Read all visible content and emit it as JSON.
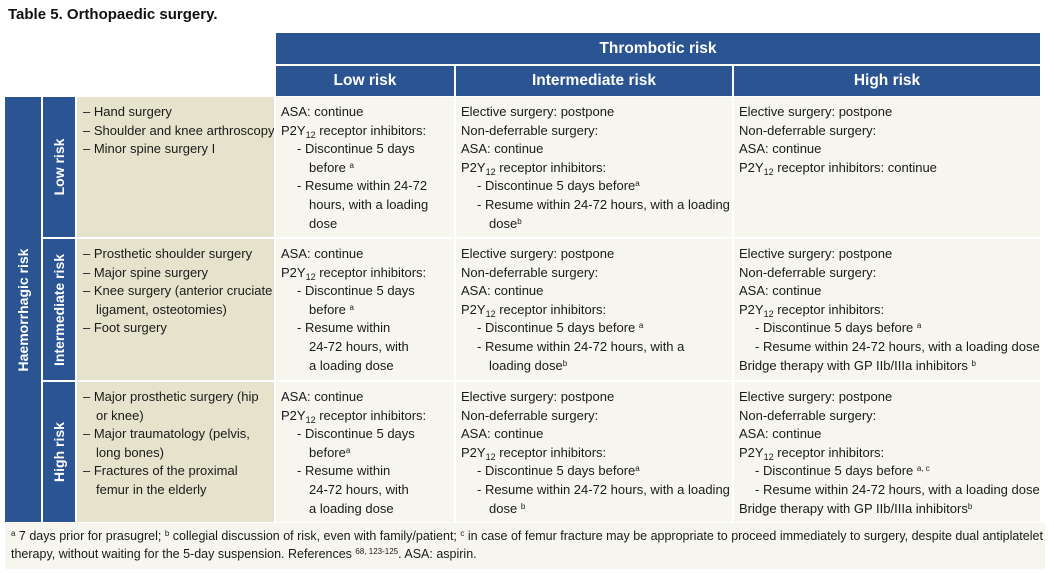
{
  "title": "Table 5. Orthopaedic surgery.",
  "headers": {
    "thrombotic_risk": "Thrombotic risk",
    "low": "Low risk",
    "intermediate": "Intermediate risk",
    "high": "High risk",
    "haemorrhagic_risk": "Haemorrhagic risk"
  },
  "rows": {
    "low": {
      "label": "Low risk",
      "surgery": [
        "– Hand surgery",
        "– Shoulder and knee arthroscopy",
        "– Minor spine surgery I"
      ],
      "c_low": {
        "l1": "ASA: continue",
        "p2y": "P2Y",
        "sub": "12",
        "rec": " receptor inhibitors:",
        "d1": "- Discontinue 5 days",
        "d2": "before ",
        "d2s": "a",
        "r1": "- Resume within 24-72",
        "r2": "hours, with a loading",
        "r3": "dose"
      },
      "c_int": {
        "l1": "Elective surgery: postpone",
        "l2": "Non-deferrable surgery:",
        "l3": "ASA: continue",
        "p2y": "P2Y",
        "sub": "12",
        "rec": " receptor inhibitors:",
        "d1": "- Discontinue 5 days before",
        "d1s": "a",
        "r1": "- Resume within 24-72 hours, with a loading",
        "r2": "dose",
        "r2s": "b"
      },
      "c_high": {
        "l1": "Elective surgery: postpone",
        "l2": "Non-deferrable surgery:",
        "l3": "ASA: continue",
        "p2y": "P2Y",
        "sub": "12",
        "rec": " receptor inhibitors: continue"
      }
    },
    "intermediate": {
      "label": "Intermediate risk",
      "surgery": [
        "– Prosthetic shoulder surgery",
        "– Major spine surgery",
        "– Knee surgery (anterior cruciate",
        "ligament, osteotomies)",
        "– Foot surgery"
      ],
      "c_low": {
        "l1": "ASA: continue",
        "p2y": "P2Y",
        "sub": "12",
        "rec": " receptor inhibitors:",
        "d1": "- Discontinue 5 days",
        "d2": "before ",
        "d2s": "a",
        "r1": "- Resume within",
        "r2": "24-72 hours, with",
        "r3": "a loading dose"
      },
      "c_int": {
        "l1": "Elective surgery: postpone",
        "l2": "Non-deferrable surgery:",
        "l3": "ASA: continue",
        "p2y": "P2Y",
        "sub": "12",
        "rec": " receptor inhibitors:",
        "d1": "- Discontinue 5 days before ",
        "d1s": "a",
        "r1": "- Resume within 24-72 hours,  with a",
        "r2": "loading dose",
        "r2s": "b"
      },
      "c_high": {
        "l1": "Elective surgery: postpone",
        "l2": "Non-deferrable surgery:",
        "l3": "ASA: continue",
        "p2y": "P2Y",
        "sub": "12",
        "rec": " receptor inhibitors:",
        "d1": "- Discontinue 5 days before ",
        "d1s": "a",
        "r1": "- Resume within 24-72 hours, with a loading dose",
        "b1": "Bridge therapy with GP IIb/IIIa inhibitors ",
        "b1s": "b"
      }
    },
    "high": {
      "label": "High risk",
      "surgery": [
        "– Major prosthetic surgery (hip",
        "or knee)",
        "– Major traumatology (pelvis,",
        "long bones)",
        "– Fractures of the proximal",
        "femur in the elderly"
      ],
      "c_low": {
        "l1": "ASA: continue",
        "p2y": "P2Y",
        "sub": "12",
        "rec": " receptor inhibitors:",
        "d1": "- Discontinue 5 days",
        "d2": "before",
        "d2s": "a",
        "r1": "- Resume within",
        "r2": "24-72 hours, with",
        "r3": "a loading dose"
      },
      "c_int": {
        "l1": "Elective surgery: postpone",
        "l2": "Non-deferrable surgery:",
        "l3": "ASA: continue",
        "p2y": "P2Y",
        "sub": "12",
        "rec": " receptor inhibitors:",
        "d1": "- Discontinue 5 days before",
        "d1s": "a",
        "r1": "- Resume within 24-72 hours, with a loading",
        "r2": "dose ",
        "r2s": "b"
      },
      "c_high": {
        "l1": "Elective surgery: postpone",
        "l2": "Non-deferrable surgery:",
        "l3": "ASA: continue",
        "p2y": "P2Y",
        "sub": "12",
        "rec": " receptor inhibitors:",
        "d1": "- Discontinue 5 days before ",
        "d1s": "a, c",
        "r1": "- Resume within 24-72 hours, with a loading dose",
        "b1": "Bridge therapy with GP IIb/IIIa inhibitors",
        "b1s": "b"
      }
    }
  },
  "footnote": {
    "a_mark": "a",
    "a_text": " 7 days prior for prasugrel; ",
    "b_mark": "b",
    "b_text": " collegial discussion of risk, even with family/patient; ",
    "c_mark": "c",
    "c_text": " in case of femur fracture may be appropriate to proceed immediately to surgery, despite dual antiplatelet",
    "line2a": "therapy, without waiting for the 5-day suspension. References ",
    "refs": "68, 123-125",
    "line2b": ". ASA: aspirin."
  }
}
